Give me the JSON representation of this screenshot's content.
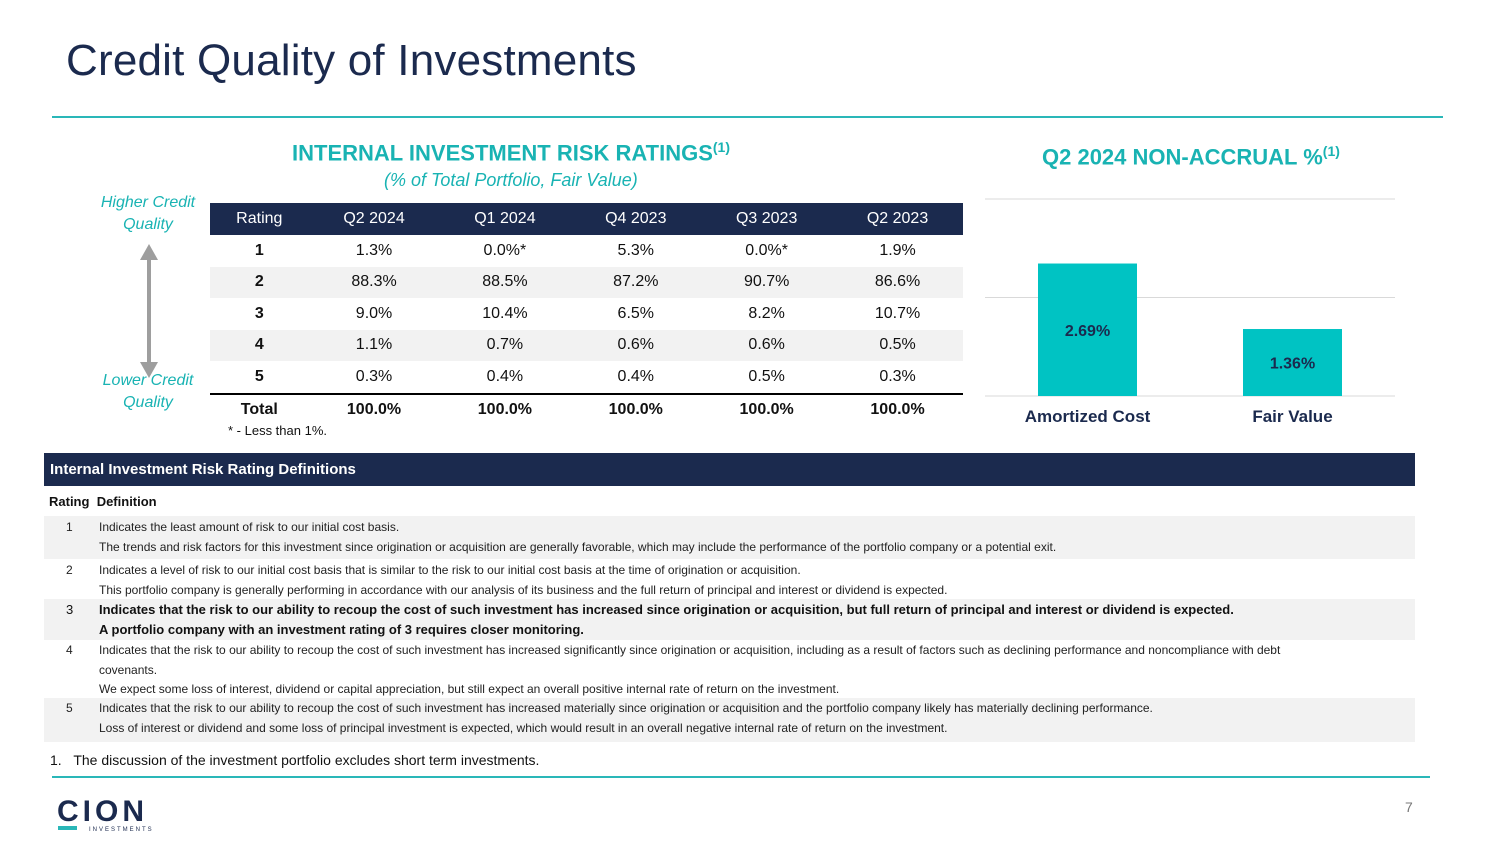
{
  "title": "Credit Quality of Investments",
  "ratings_section": {
    "heading": "INTERNAL INVESTMENT RISK RATINGS",
    "heading_sup": "(1)",
    "subheading": "(% of Total Portfolio, Fair Value)",
    "higher_label": "Higher Credit Quality",
    "lower_label": "Lower Credit Quality",
    "columns": [
      "Rating",
      "Q2 2024",
      "Q1 2024",
      "Q4 2023",
      "Q3 2023",
      "Q2 2023"
    ],
    "rows": [
      [
        "1",
        "1.3%",
        "0.0%*",
        "5.3%",
        "0.0%*",
        "1.9%"
      ],
      [
        "2",
        "88.3%",
        "88.5%",
        "87.2%",
        "90.7%",
        "86.6%"
      ],
      [
        "3",
        "9.0%",
        "10.4%",
        "6.5%",
        "8.2%",
        "10.7%"
      ],
      [
        "4",
        "1.1%",
        "0.7%",
        "0.6%",
        "0.6%",
        "0.5%"
      ],
      [
        "5",
        "0.3%",
        "0.4%",
        "0.4%",
        "0.5%",
        "0.3%"
      ]
    ],
    "total_row": [
      "Total",
      "100.0%",
      "100.0%",
      "100.0%",
      "100.0%",
      "100.0%"
    ],
    "note": "* - Less than 1%."
  },
  "nonaccrual_section": {
    "heading": "Q2 2024 NON-ACCRUAL %",
    "heading_sup": "(1)"
  },
  "chart_data": {
    "type": "bar",
    "title": "Q2 2024 NON-ACCRUAL %",
    "categories": [
      "Amortized Cost",
      "Fair Value"
    ],
    "values": [
      2.69,
      1.36
    ],
    "value_labels": [
      "2.69%",
      "1.36%"
    ],
    "ylim": [
      0,
      4
    ],
    "grid": true,
    "bar_color": "#00c3c3"
  },
  "definitions": {
    "heading": "Internal Investment Risk Rating Definitions",
    "col_rating": "Rating",
    "col_definition": "Definition",
    "items": [
      {
        "num": "1",
        "lines": [
          "Indicates the least amount of risk to our initial cost basis.",
          "The trends and risk factors for this investment since origination or acquisition are generally favorable, which may include the performance of the portfolio company or a potential exit."
        ]
      },
      {
        "num": "2",
        "lines": [
          "Indicates a level of risk to our initial cost basis that is similar to the risk to our initial cost basis at the time of origination or acquisition.",
          "This portfolio company is generally performing in accordance with our analysis of its business and the full return of principal and interest or dividend is expected."
        ]
      },
      {
        "num": "3",
        "lines": [
          "Indicates that the risk to our ability to recoup the cost of such investment has increased since origination or acquisition, but full return of principal and interest or dividend is expected.",
          "A portfolio company with an investment rating of 3 requires closer monitoring."
        ]
      },
      {
        "num": "4",
        "lines": [
          "Indicates that the risk to our ability to recoup the cost of such investment has increased significantly since origination or acquisition, including as a result of factors such as declining performance and noncompliance with debt",
          "covenants.",
          "We expect some loss of interest, dividend or capital appreciation, but still expect an overall positive internal rate of return on the investment."
        ]
      },
      {
        "num": "5",
        "lines": [
          "Indicates that the risk to our ability to recoup the cost of such investment has increased materially since origination or acquisition and the portfolio company likely has materially declining performance.",
          "Loss of interest or dividend and some loss of principal investment is expected, which would result in an overall negative internal rate of return on the investment."
        ]
      }
    ]
  },
  "footnote": "1.   The discussion of the investment portfolio excludes short term investments.",
  "logo": {
    "name": "CION",
    "tagline": "INVESTMENTS"
  },
  "page_number": "7"
}
